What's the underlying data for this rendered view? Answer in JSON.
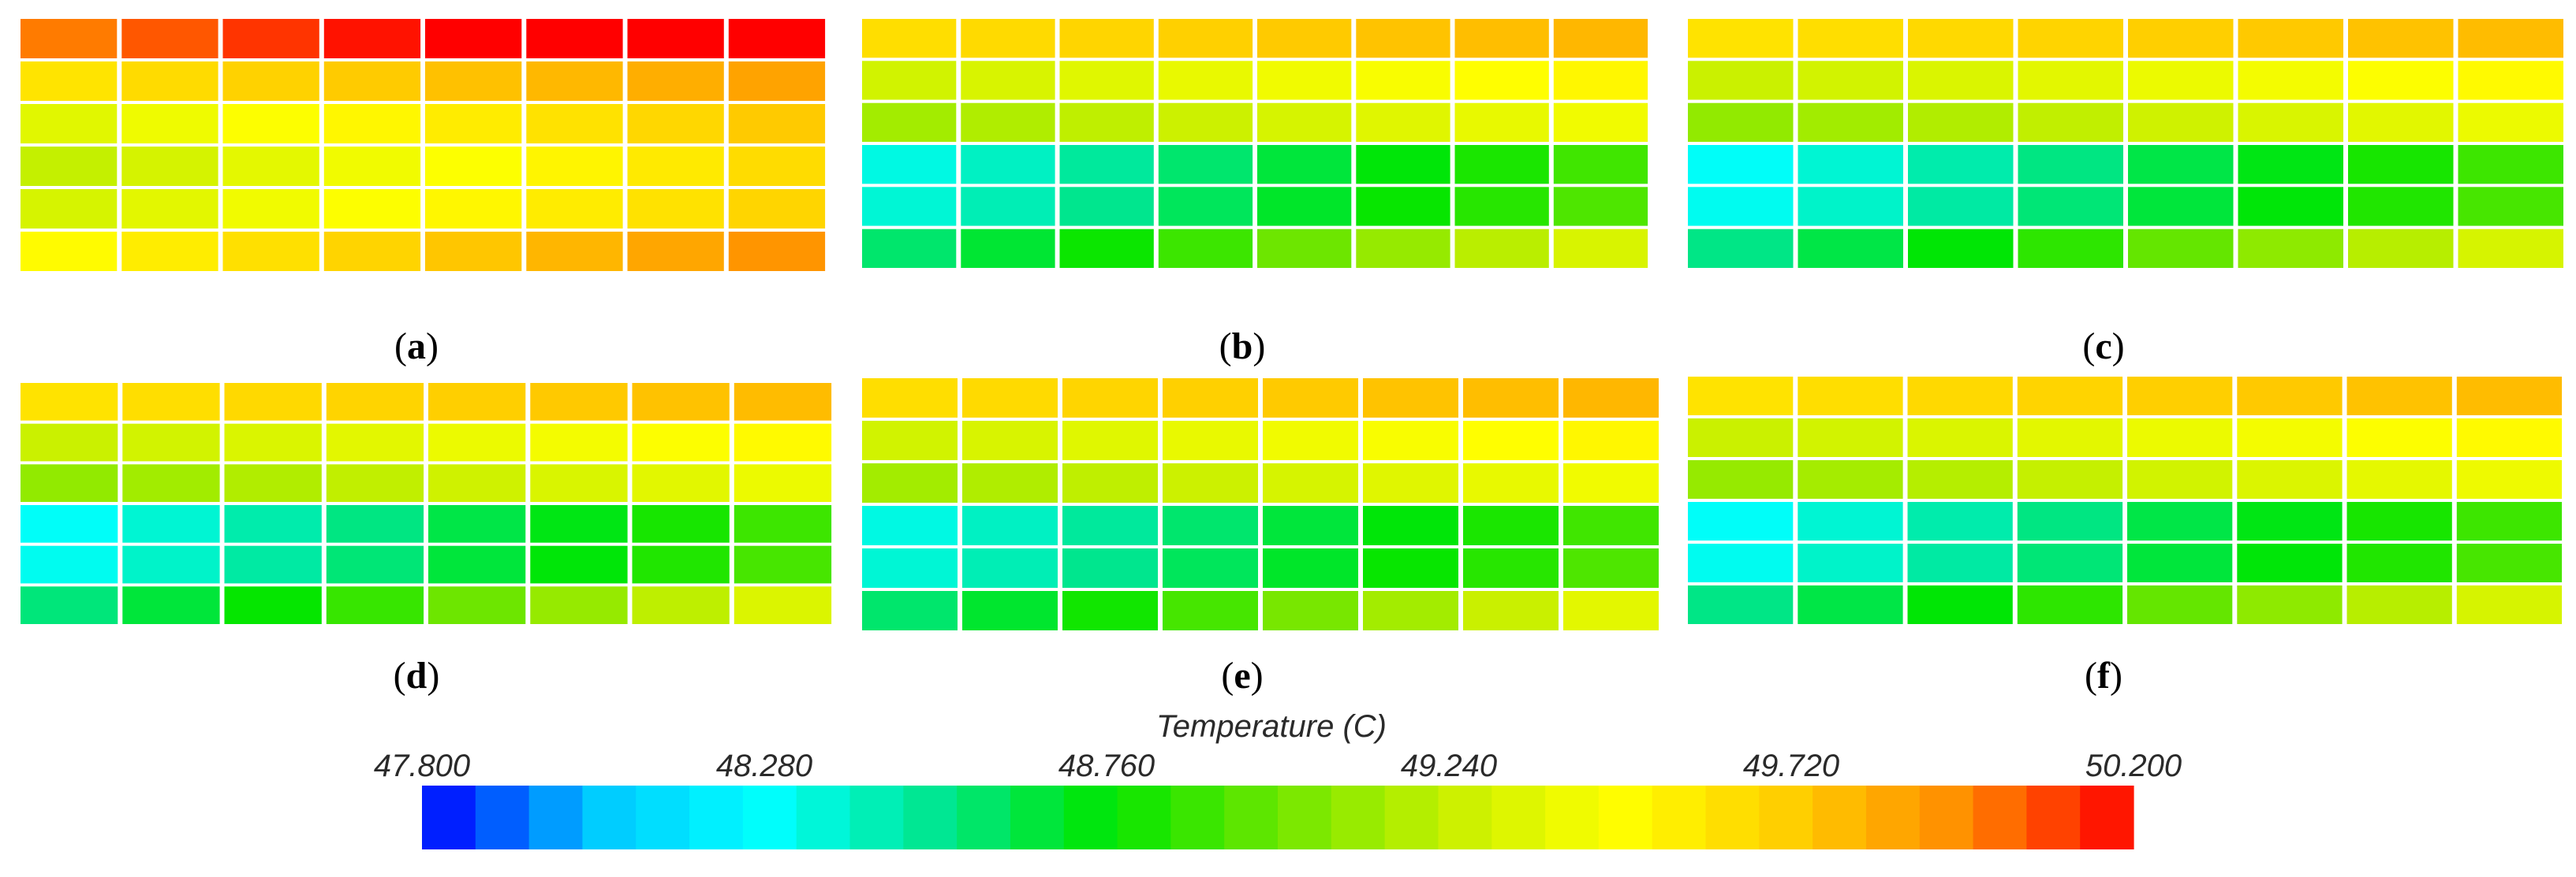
{
  "chart_data": {
    "type": "heatmap",
    "grid": {
      "columns": 8,
      "rows": 6
    },
    "panels": [
      {
        "label": "a",
        "title": "(a)",
        "row_temps": [
          50.05,
          49.75,
          49.55,
          49.45,
          49.5,
          49.62
        ],
        "col_offsets": [
          -0.2,
          -0.14,
          -0.08,
          -0.03,
          0.02,
          0.07,
          0.12,
          0.18
        ],
        "row_spread": [
          0.3,
          0.7,
          1.0,
          1.1,
          1.0,
          0.6
        ],
        "outer_cols": [
          0.3,
          0.2
        ]
      },
      {
        "label": "b",
        "title": "(b)",
        "row_temps": [
          49.72,
          49.4,
          49.28,
          48.62,
          48.65,
          48.82
        ],
        "col_offsets": [
          -0.2,
          -0.15,
          -0.09,
          -0.03,
          0.03,
          0.09,
          0.14,
          0.2
        ],
        "row_spread": [
          0.4,
          0.6,
          0.7,
          1.4,
          1.4,
          1.2
        ],
        "outer_cols": [
          0.0,
          0.25
        ]
      },
      {
        "label": "c",
        "title": "(c)",
        "row_temps": [
          49.7,
          49.38,
          49.25,
          48.6,
          48.62,
          48.8
        ],
        "col_offsets": [
          -0.22,
          -0.16,
          -0.1,
          -0.04,
          0.03,
          0.09,
          0.15,
          0.21
        ],
        "row_spread": [
          0.4,
          0.6,
          0.7,
          1.4,
          1.4,
          1.2
        ],
        "outer_cols": [
          0.0,
          0.25
        ]
      },
      {
        "label": "d",
        "title": "(d)",
        "row_temps": [
          49.7,
          49.38,
          49.25,
          48.6,
          48.62,
          48.82
        ],
        "col_offsets": [
          -0.22,
          -0.16,
          -0.1,
          -0.04,
          0.03,
          0.09,
          0.15,
          0.21
        ],
        "row_spread": [
          0.4,
          0.6,
          0.7,
          1.4,
          1.4,
          1.2
        ],
        "outer_cols": [
          0.0,
          0.25
        ]
      },
      {
        "label": "e",
        "title": "(e)",
        "row_temps": [
          49.72,
          49.4,
          49.28,
          48.62,
          48.65,
          48.82
        ],
        "col_offsets": [
          -0.2,
          -0.15,
          -0.09,
          -0.03,
          0.03,
          0.09,
          0.14,
          0.2
        ],
        "row_spread": [
          0.4,
          0.6,
          0.7,
          1.4,
          1.4,
          1.2
        ],
        "outer_cols": [
          0.0,
          0.3
        ]
      },
      {
        "label": "f",
        "title": "(f)",
        "row_temps": [
          49.7,
          49.38,
          49.26,
          48.6,
          48.62,
          48.8
        ],
        "col_offsets": [
          -0.22,
          -0.16,
          -0.1,
          -0.04,
          0.03,
          0.09,
          0.15,
          0.21
        ],
        "row_spread": [
          0.4,
          0.6,
          0.7,
          1.4,
          1.4,
          1.2
        ],
        "outer_cols": [
          0.0,
          0.25
        ]
      }
    ],
    "colorbar": {
      "title": "Temperature (C)",
      "min": 47.8,
      "max": 50.2,
      "n_bands": 32,
      "tick_values": [
        47.8,
        48.28,
        48.76,
        49.24,
        49.72,
        50.2
      ],
      "tick_labels": [
        "47.800",
        "48.280",
        "48.760",
        "49.240",
        "49.720",
        "50.200"
      ],
      "colors": [
        "#0000ff",
        "#00c8ff",
        "#00ffff",
        "#00e690",
        "#00e600",
        "#6ee600",
        "#c8f000",
        "#ffff00",
        "#ffcd00",
        "#ff8c00",
        "#ff0000"
      ]
    }
  }
}
